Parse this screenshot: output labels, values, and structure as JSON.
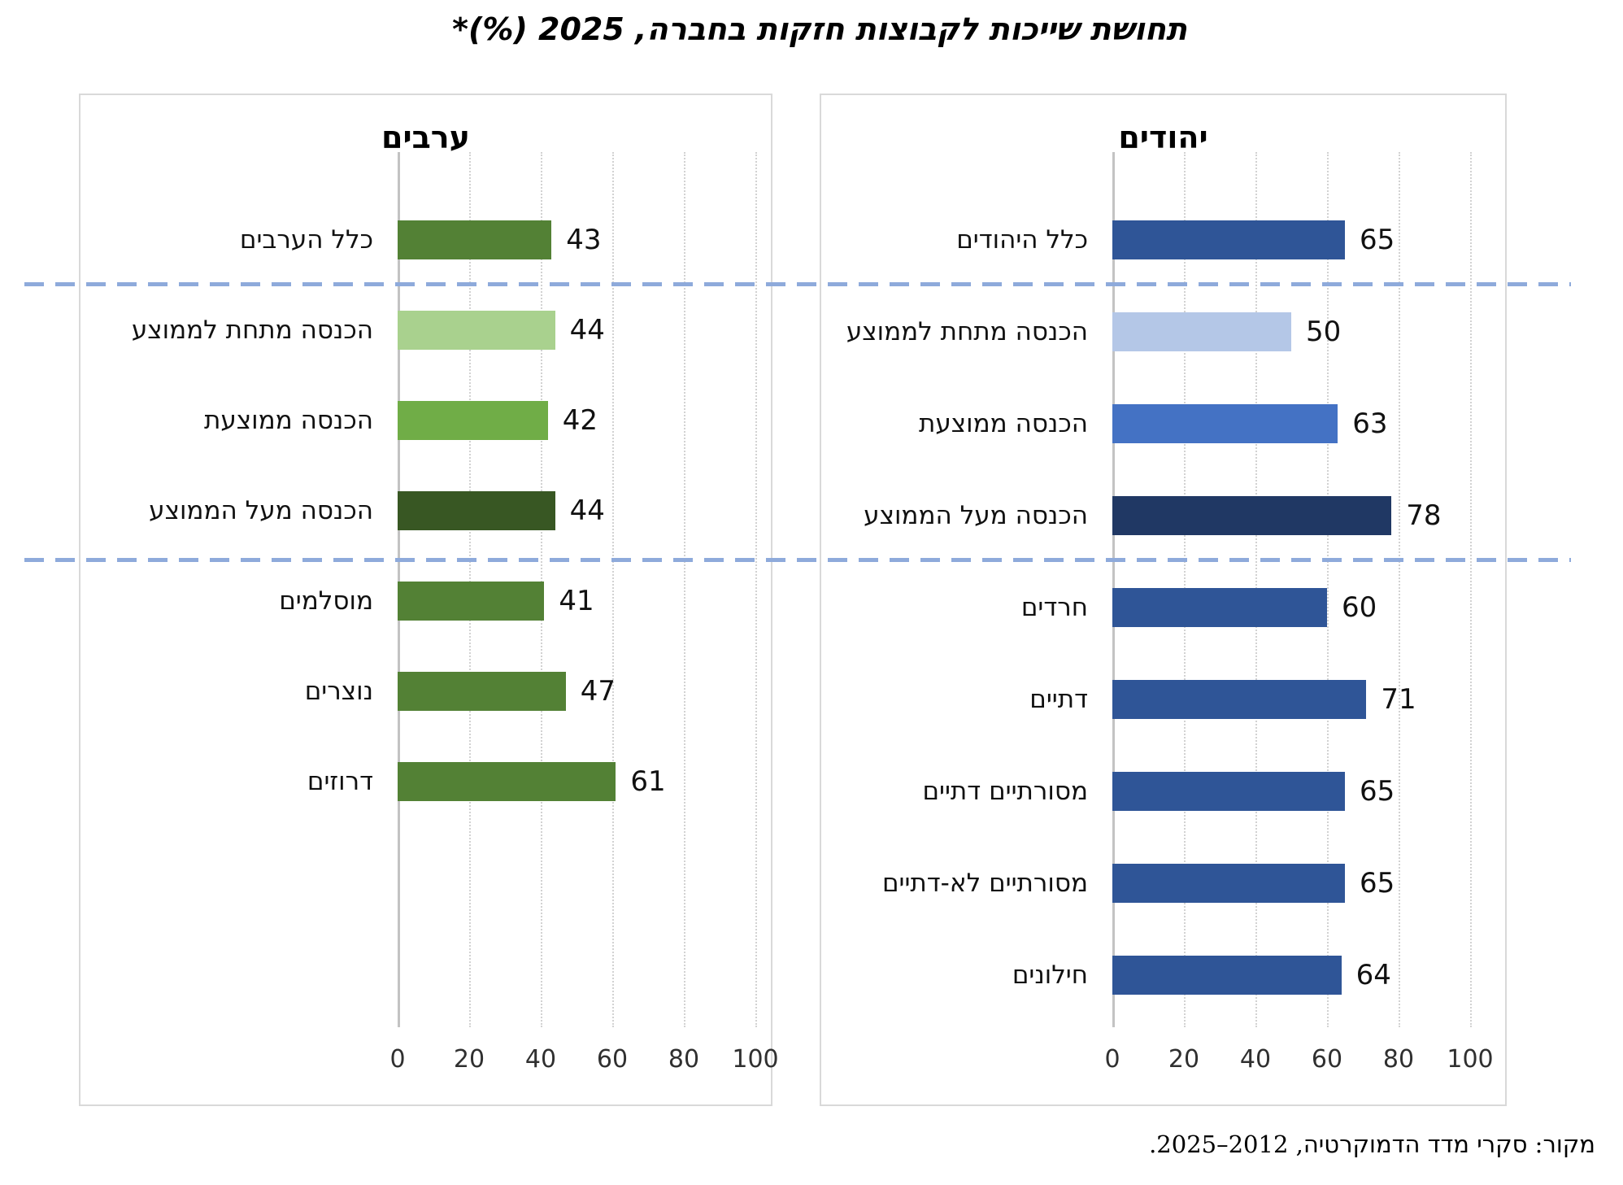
{
  "title": "תחושת שייכות לקבוצות חזקות בחברה, 2025 (%)*",
  "source": "מקור: סקרי מדד הדמוקרטיה, 2012–2025.",
  "group_separators": {
    "after_rows": [
      0,
      3
    ],
    "style": "dashed",
    "color": "#8EAADB"
  },
  "chart_data": [
    {
      "type": "bar",
      "orientation": "horizontal",
      "panel_side": "right",
      "title": "יהודים",
      "categories": [
        "כלל היהודים",
        "הכנסה מתחת לממוצע",
        "הכנסה ממוצעת",
        "הכנסה מעל הממוצע",
        "חרדים",
        "דתיים",
        "מסורתיים דתיים",
        "מסורתיים לא-דתיים",
        "חילונים"
      ],
      "values": [
        65,
        50,
        63,
        78,
        60,
        71,
        65,
        65,
        64
      ],
      "bar_colors": [
        "#2F5597",
        "#B4C7E7",
        "#4472C4",
        "#203864",
        "#2F5597",
        "#2F5597",
        "#2F5597",
        "#2F5597",
        "#2F5597"
      ],
      "xlim": [
        0,
        100
      ],
      "axis_ticks": [
        0,
        20,
        40,
        60,
        80,
        100
      ],
      "grid": "dotted-vertical",
      "legend": "none"
    },
    {
      "type": "bar",
      "orientation": "horizontal",
      "panel_side": "left",
      "title": "ערבים",
      "categories": [
        "כלל הערבים",
        "הכנסה מתחת לממוצע",
        "הכנסה ממוצעת",
        "הכנסה מעל הממוצע",
        "מוסלמים",
        "נוצרים",
        "דרוזים"
      ],
      "values": [
        43,
        44,
        42,
        44,
        41,
        47,
        61
      ],
      "bar_colors": [
        "#538135",
        "#A9D18E",
        "#70AD47",
        "#385723",
        "#538135",
        "#538135",
        "#538135"
      ],
      "xlim": [
        0,
        100
      ],
      "axis_ticks": [
        0,
        20,
        40,
        60,
        80,
        100
      ],
      "grid": "dotted-vertical",
      "legend": "none"
    }
  ]
}
